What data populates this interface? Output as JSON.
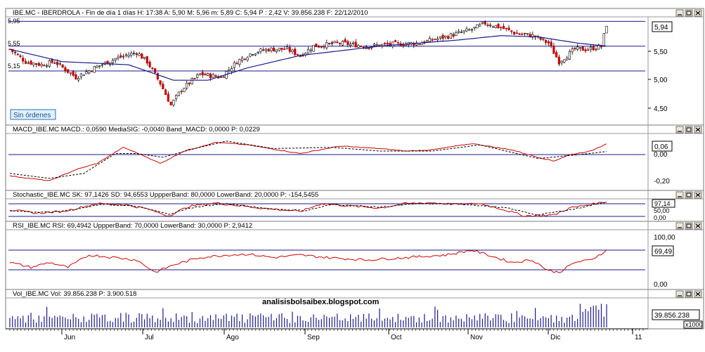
{
  "panels": {
    "price": {
      "title": "IBE.MC - IBERDROLA - Fin de día 1 días H: 17:38  A: 5,90  M: 5,96  m: 5,89  C: 5,94  P : 2,42  V: 39.856.238  F: 22/12/2010",
      "ticks": [
        "5,50",
        "5,00",
        "4,50"
      ],
      "left_labels": [
        "5,95",
        "5,55",
        "5,15"
      ],
      "last": "5,94",
      "badge": "Sin órdenes"
    },
    "macd": {
      "title": "MACD_IBE.MC  MACD.: 0,0590  MediaSIG: -0,0040  Band_MACD: 0,0000  P: 0,0229",
      "ticks": [
        "0,00",
        "-0,20"
      ],
      "last": "0,06"
    },
    "stoch": {
      "title": "Stochastic_IBE.MC  SK: 97,1426  SD: 94,6553  UppperBand: 80,0000  LowerBand: 20,0000  P: -154,5455",
      "ticks": [
        "50,00",
        "0,00"
      ],
      "last": "97,14"
    },
    "rsi": {
      "title": "RSI_IBE.MC  RSI: 69,4942  UppperBand: 70,0000  LowerBand: 30,0000  P: 2,9412",
      "ticks": [
        "100,00",
        "0,00"
      ],
      "last": "69,49"
    },
    "vol": {
      "title": "Vol_IBE.MC  Vol: 39.856.238  P: 3.900.518",
      "last": "39.856.238",
      "multiplier": "x1000"
    }
  },
  "watermark": "analisisbolsaibex.blogspot.com",
  "months": [
    "Jun",
    "Jul",
    "Ago",
    "Sep",
    "Oct",
    "Nov",
    "Dic",
    "11"
  ],
  "colors": {
    "up": "#ffffff",
    "down": "#cc0000",
    "ma": "#1a1a8c",
    "band": "#1a1a8c",
    "signal": "#000000",
    "indicator": "#cc0000"
  },
  "chart_data": [
    {
      "type": "candlestick",
      "title": "IBE.MC - IBERDROLA",
      "ylim": [
        4.3,
        6.0
      ],
      "hlines": [
        5.95,
        5.55,
        5.15
      ],
      "close_path": [
        [
          0,
          5.5
        ],
        [
          6,
          5.3
        ],
        [
          12,
          5.25
        ],
        [
          17,
          5.3
        ],
        [
          25,
          5.05
        ],
        [
          32,
          5.2
        ],
        [
          40,
          5.35
        ],
        [
          48,
          5.45
        ],
        [
          52,
          5.3
        ],
        [
          57,
          4.95
        ],
        [
          61,
          4.6
        ],
        [
          65,
          4.85
        ],
        [
          72,
          5.1
        ],
        [
          80,
          5.05
        ],
        [
          86,
          5.3
        ],
        [
          92,
          5.45
        ],
        [
          98,
          5.5
        ],
        [
          105,
          5.5
        ],
        [
          110,
          5.4
        ],
        [
          115,
          5.55
        ],
        [
          125,
          5.6
        ],
        [
          135,
          5.55
        ],
        [
          145,
          5.58
        ],
        [
          155,
          5.6
        ],
        [
          165,
          5.7
        ],
        [
          175,
          5.82
        ],
        [
          180,
          5.92
        ],
        [
          186,
          5.85
        ],
        [
          192,
          5.75
        ],
        [
          198,
          5.72
        ],
        [
          204,
          5.6
        ],
        [
          208,
          5.3
        ],
        [
          214,
          5.5
        ],
        [
          219,
          5.5
        ],
        [
          224,
          5.55
        ],
        [
          226,
          5.9
        ]
      ],
      "ma_path": [
        [
          0,
          5.5
        ],
        [
          20,
          5.3
        ],
        [
          45,
          5.25
        ],
        [
          62,
          5.0
        ],
        [
          75,
          5.0
        ],
        [
          90,
          5.2
        ],
        [
          110,
          5.4
        ],
        [
          140,
          5.55
        ],
        [
          170,
          5.65
        ],
        [
          186,
          5.72
        ],
        [
          200,
          5.7
        ],
        [
          215,
          5.6
        ],
        [
          226,
          5.55
        ]
      ]
    },
    {
      "type": "line",
      "title": "MACD_IBE.MC",
      "ylim": [
        -0.3,
        0.13
      ],
      "series": [
        {
          "name": "MACD",
          "values_path": [
            [
              0,
              -0.2
            ],
            [
              15,
              -0.24
            ],
            [
              25,
              -0.15
            ],
            [
              33,
              -0.1
            ],
            [
              43,
              0.03
            ],
            [
              52,
              -0.05
            ],
            [
              57,
              -0.1
            ],
            [
              66,
              0.0
            ],
            [
              78,
              0.07
            ],
            [
              90,
              0.05
            ],
            [
              110,
              -0.02
            ],
            [
              125,
              0.04
            ],
            [
              140,
              0.02
            ],
            [
              150,
              0.0
            ],
            [
              160,
              0.01
            ],
            [
              175,
              0.06
            ],
            [
              190,
              0.01
            ],
            [
              200,
              -0.05
            ],
            [
              206,
              -0.08
            ],
            [
              212,
              -0.03
            ],
            [
              220,
              0.0
            ],
            [
              226,
              0.06
            ]
          ]
        },
        {
          "name": "MediaSIG",
          "values_path": [
            [
              0,
              -0.18
            ],
            [
              15,
              -0.22
            ],
            [
              28,
              -0.18
            ],
            [
              40,
              -0.02
            ],
            [
              48,
              -0.02
            ],
            [
              58,
              -0.05
            ],
            [
              70,
              0.02
            ],
            [
              82,
              0.08
            ],
            [
              100,
              0.02
            ],
            [
              122,
              0.03
            ],
            [
              140,
              0.0
            ],
            [
              160,
              0.0
            ],
            [
              178,
              0.05
            ],
            [
              200,
              -0.06
            ],
            [
              215,
              -0.03
            ],
            [
              226,
              -0.004
            ]
          ]
        }
      ]
    },
    {
      "type": "line",
      "title": "Stochastic_IBE.MC",
      "ylim": [
        0,
        100
      ],
      "hlines": [
        80,
        20
      ],
      "series": [
        {
          "name": "SK",
          "values_path": [
            [
              0,
              50
            ],
            [
              10,
              30
            ],
            [
              20,
              40
            ],
            [
              33,
              85
            ],
            [
              43,
              80
            ],
            [
              52,
              55
            ],
            [
              60,
              15
            ],
            [
              68,
              70
            ],
            [
              78,
              88
            ],
            [
              95,
              60
            ],
            [
              110,
              40
            ],
            [
              118,
              85
            ],
            [
              130,
              70
            ],
            [
              140,
              60
            ],
            [
              150,
              85
            ],
            [
              160,
              90
            ],
            [
              170,
              80
            ],
            [
              178,
              85
            ],
            [
              186,
              55
            ],
            [
              195,
              15
            ],
            [
              206,
              20
            ],
            [
              212,
              60
            ],
            [
              220,
              80
            ],
            [
              226,
              97.14
            ]
          ]
        },
        {
          "name": "SD",
          "values_path": [
            [
              0,
              45
            ],
            [
              12,
              35
            ],
            [
              22,
              45
            ],
            [
              35,
              80
            ],
            [
              48,
              70
            ],
            [
              60,
              25
            ],
            [
              70,
              65
            ],
            [
              82,
              85
            ],
            [
              98,
              55
            ],
            [
              112,
              45
            ],
            [
              122,
              80
            ],
            [
              140,
              65
            ],
            [
              155,
              85
            ],
            [
              172,
              82
            ],
            [
              188,
              60
            ],
            [
              200,
              20
            ],
            [
              214,
              55
            ],
            [
              226,
              94.66
            ]
          ]
        }
      ]
    },
    {
      "type": "line",
      "title": "RSI_IBE.MC",
      "ylim": [
        0,
        100
      ],
      "hlines": [
        70,
        30
      ],
      "series": [
        {
          "name": "RSI",
          "values_path": [
            [
              0,
              45
            ],
            [
              8,
              35
            ],
            [
              15,
              45
            ],
            [
              22,
              35
            ],
            [
              30,
              60
            ],
            [
              40,
              55
            ],
            [
              48,
              50
            ],
            [
              55,
              25
            ],
            [
              62,
              40
            ],
            [
              72,
              55
            ],
            [
              82,
              60
            ],
            [
              90,
              62
            ],
            [
              100,
              55
            ],
            [
              110,
              60
            ],
            [
              120,
              55
            ],
            [
              135,
              50
            ],
            [
              150,
              55
            ],
            [
              165,
              60
            ],
            [
              175,
              70
            ],
            [
              180,
              62
            ],
            [
              190,
              45
            ],
            [
              198,
              50
            ],
            [
              204,
              28
            ],
            [
              208,
              25
            ],
            [
              214,
              45
            ],
            [
              220,
              50
            ],
            [
              226,
              69.49
            ]
          ]
        }
      ]
    },
    {
      "type": "bar",
      "title": "Vol_IBE.MC",
      "note": "x1000",
      "last_volume": 39856238,
      "average": 3900518
    }
  ]
}
